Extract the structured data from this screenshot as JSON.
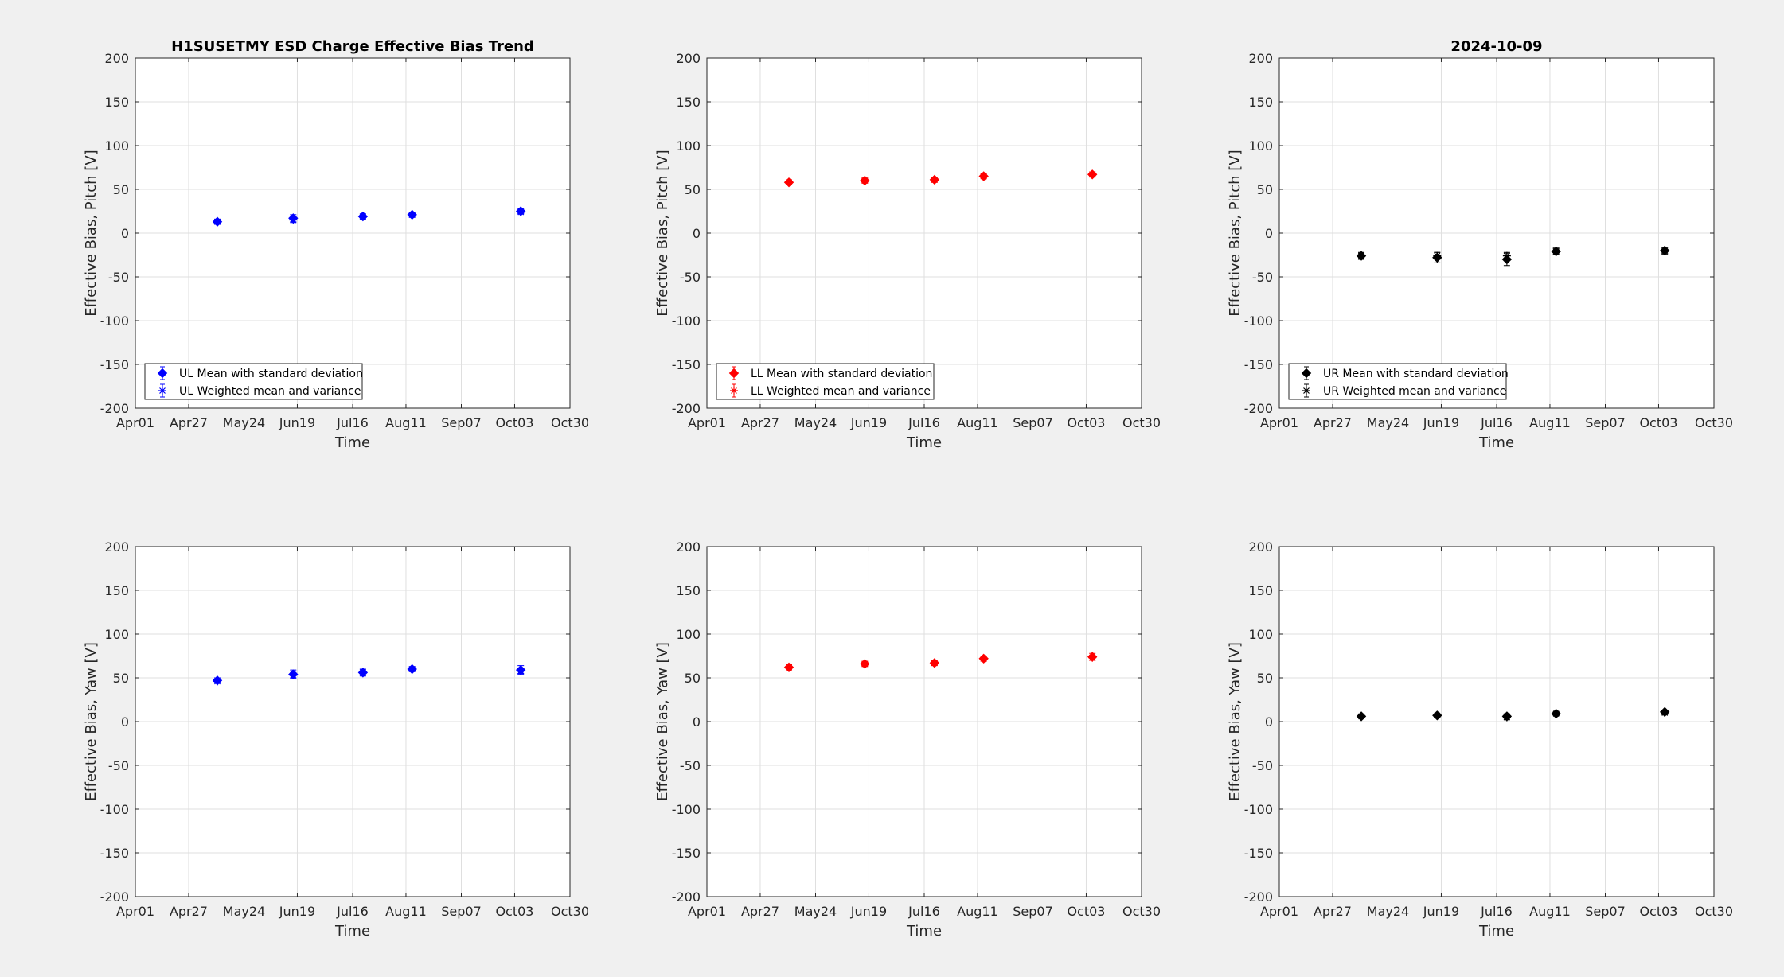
{
  "figure": {
    "background": "#f0f0f0"
  },
  "chart_data": [
    {
      "type": "scatter",
      "title": "H1SUSETMY ESD Charge Effective Bias Trend",
      "xlabel": "Time",
      "ylabel": "Effective Bias, Pitch [V]",
      "ylim": [
        -200,
        200
      ],
      "x_ticks": [
        "Apr01",
        "Apr27",
        "May24",
        "Jun19",
        "Jul16",
        "Aug11",
        "Sep07",
        "Oct03",
        "Oct30"
      ],
      "x_tick_dates": [
        "2024-04-01",
        "2024-04-27",
        "2024-05-24",
        "2024-06-19",
        "2024-07-16",
        "2024-08-11",
        "2024-09-07",
        "2024-10-03",
        "2024-10-30"
      ],
      "y_ticks": [
        200,
        150,
        100,
        50,
        0,
        -50,
        -100,
        -150,
        -200
      ],
      "grid": true,
      "legend_position": "bottom-left",
      "color": "#0000ff",
      "series": [
        {
          "name": "UL Mean with standard deviation",
          "marker": "diamond",
          "x": [
            "2024-05-11",
            "2024-06-17",
            "2024-07-21",
            "2024-08-14",
            "2024-10-06"
          ],
          "y": [
            13,
            17,
            19,
            21,
            25
          ],
          "err": [
            3,
            4,
            3,
            3,
            3
          ]
        },
        {
          "name": "UL Weighted mean and variance",
          "marker": "asterisk",
          "x": [
            "2024-05-11",
            "2024-06-17",
            "2024-07-21",
            "2024-08-14",
            "2024-10-06"
          ],
          "y": [
            13,
            15,
            19,
            21,
            24
          ],
          "err": [
            2,
            3,
            2,
            2,
            2
          ]
        }
      ]
    },
    {
      "type": "scatter",
      "title": "",
      "xlabel": "Time",
      "ylabel": "Effective Bias, Pitch [V]",
      "ylim": [
        -200,
        200
      ],
      "x_ticks": [
        "Apr01",
        "Apr27",
        "May24",
        "Jun19",
        "Jul16",
        "Aug11",
        "Sep07",
        "Oct03",
        "Oct30"
      ],
      "x_tick_dates": [
        "2024-04-01",
        "2024-04-27",
        "2024-05-24",
        "2024-06-19",
        "2024-07-16",
        "2024-08-11",
        "2024-09-07",
        "2024-10-03",
        "2024-10-30"
      ],
      "y_ticks": [
        200,
        150,
        100,
        50,
        0,
        -50,
        -100,
        -150,
        -200
      ],
      "grid": true,
      "legend_position": "bottom-left",
      "color": "#ff0000",
      "series": [
        {
          "name": "LL Mean with standard deviation",
          "marker": "diamond",
          "x": [
            "2024-05-11",
            "2024-06-17",
            "2024-07-21",
            "2024-08-14",
            "2024-10-06"
          ],
          "y": [
            58,
            60,
            61,
            65,
            67
          ],
          "err": [
            3,
            3,
            3,
            3,
            3
          ]
        },
        {
          "name": "LL Weighted mean and variance",
          "marker": "asterisk",
          "x": [
            "2024-05-11",
            "2024-06-17",
            "2024-07-21",
            "2024-08-14",
            "2024-10-06"
          ],
          "y": [
            58,
            60,
            61,
            65,
            67
          ],
          "err": [
            2,
            2,
            2,
            2,
            2
          ]
        }
      ]
    },
    {
      "type": "scatter",
      "title": "2024-10-09",
      "xlabel": "Time",
      "ylabel": "Effective Bias, Pitch [V]",
      "ylim": [
        -200,
        200
      ],
      "x_ticks": [
        "Apr01",
        "Apr27",
        "May24",
        "Jun19",
        "Jul16",
        "Aug11",
        "Sep07",
        "Oct03",
        "Oct30"
      ],
      "x_tick_dates": [
        "2024-04-01",
        "2024-04-27",
        "2024-05-24",
        "2024-06-19",
        "2024-07-16",
        "2024-08-11",
        "2024-09-07",
        "2024-10-03",
        "2024-10-30"
      ],
      "y_ticks": [
        200,
        150,
        100,
        50,
        0,
        -50,
        -100,
        -150,
        -200
      ],
      "grid": true,
      "legend_position": "bottom-left",
      "color": "#000000",
      "series": [
        {
          "name": "UR Mean with standard deviation",
          "marker": "diamond",
          "x": [
            "2024-05-11",
            "2024-06-17",
            "2024-07-21",
            "2024-08-14",
            "2024-10-06"
          ],
          "y": [
            -26,
            -28,
            -30,
            -21,
            -20
          ],
          "err": [
            4,
            6,
            7,
            4,
            4
          ]
        },
        {
          "name": "UR Weighted mean and variance",
          "marker": "asterisk",
          "x": [
            "2024-05-11",
            "2024-06-17",
            "2024-07-21",
            "2024-08-14",
            "2024-10-06"
          ],
          "y": [
            -26,
            -26,
            -26,
            -21,
            -20
          ],
          "err": [
            3,
            4,
            4,
            3,
            3
          ]
        }
      ]
    },
    {
      "type": "scatter",
      "title": "",
      "xlabel": "Time",
      "ylabel": "Effective Bias, Yaw [V]",
      "ylim": [
        -200,
        200
      ],
      "x_ticks": [
        "Apr01",
        "Apr27",
        "May24",
        "Jun19",
        "Jul16",
        "Aug11",
        "Sep07",
        "Oct03",
        "Oct30"
      ],
      "x_tick_dates": [
        "2024-04-01",
        "2024-04-27",
        "2024-05-24",
        "2024-06-19",
        "2024-07-16",
        "2024-08-11",
        "2024-09-07",
        "2024-10-03",
        "2024-10-30"
      ],
      "y_ticks": [
        200,
        150,
        100,
        50,
        0,
        -50,
        -100,
        -150,
        -200
      ],
      "grid": true,
      "color": "#0000ff",
      "series": [
        {
          "marker": "diamond",
          "x": [
            "2024-05-11",
            "2024-06-17",
            "2024-07-21",
            "2024-08-14",
            "2024-10-06"
          ],
          "y": [
            47,
            54,
            56,
            60,
            59
          ],
          "err": [
            3,
            5,
            4,
            3,
            5
          ]
        },
        {
          "marker": "asterisk",
          "x": [
            "2024-05-11",
            "2024-06-17",
            "2024-07-21",
            "2024-08-14",
            "2024-10-06"
          ],
          "y": [
            46,
            53,
            56,
            60,
            58
          ],
          "err": [
            2,
            3,
            3,
            2,
            3
          ]
        }
      ]
    },
    {
      "type": "scatter",
      "title": "",
      "xlabel": "Time",
      "ylabel": "Effective Bias, Yaw [V]",
      "ylim": [
        -200,
        200
      ],
      "x_ticks": [
        "Apr01",
        "Apr27",
        "May24",
        "Jun19",
        "Jul16",
        "Aug11",
        "Sep07",
        "Oct03",
        "Oct30"
      ],
      "x_tick_dates": [
        "2024-04-01",
        "2024-04-27",
        "2024-05-24",
        "2024-06-19",
        "2024-07-16",
        "2024-08-11",
        "2024-09-07",
        "2024-10-03",
        "2024-10-30"
      ],
      "y_ticks": [
        200,
        150,
        100,
        50,
        0,
        -50,
        -100,
        -150,
        -200
      ],
      "grid": true,
      "color": "#ff0000",
      "series": [
        {
          "marker": "diamond",
          "x": [
            "2024-05-11",
            "2024-06-17",
            "2024-07-21",
            "2024-08-14",
            "2024-10-06"
          ],
          "y": [
            62,
            66,
            67,
            72,
            74
          ],
          "err": [
            3,
            3,
            3,
            3,
            4
          ]
        },
        {
          "marker": "asterisk",
          "x": [
            "2024-05-11",
            "2024-06-17",
            "2024-07-21",
            "2024-08-14",
            "2024-10-06"
          ],
          "y": [
            62,
            66,
            67,
            72,
            73
          ],
          "err": [
            2,
            2,
            2,
            2,
            3
          ]
        }
      ]
    },
    {
      "type": "scatter",
      "title": "",
      "xlabel": "Time",
      "ylabel": "Effective Bias, Yaw [V]",
      "ylim": [
        -200,
        200
      ],
      "x_ticks": [
        "Apr01",
        "Apr27",
        "May24",
        "Jun19",
        "Jul16",
        "Aug11",
        "Sep07",
        "Oct03",
        "Oct30"
      ],
      "x_tick_dates": [
        "2024-04-01",
        "2024-04-27",
        "2024-05-24",
        "2024-06-19",
        "2024-07-16",
        "2024-08-11",
        "2024-09-07",
        "2024-10-03",
        "2024-10-30"
      ],
      "y_ticks": [
        200,
        150,
        100,
        50,
        0,
        -50,
        -100,
        -150,
        -200
      ],
      "grid": true,
      "color": "#000000",
      "series": [
        {
          "marker": "diamond",
          "x": [
            "2024-05-11",
            "2024-06-17",
            "2024-07-21",
            "2024-08-14",
            "2024-10-06"
          ],
          "y": [
            6,
            7,
            6,
            9,
            11
          ],
          "err": [
            2,
            2,
            3,
            2,
            2
          ]
        },
        {
          "marker": "asterisk",
          "x": [
            "2024-05-11",
            "2024-06-17",
            "2024-07-21",
            "2024-08-14",
            "2024-10-06"
          ],
          "y": [
            6,
            7,
            5,
            9,
            10
          ],
          "err": [
            2,
            2,
            3,
            2,
            2
          ]
        }
      ]
    }
  ]
}
